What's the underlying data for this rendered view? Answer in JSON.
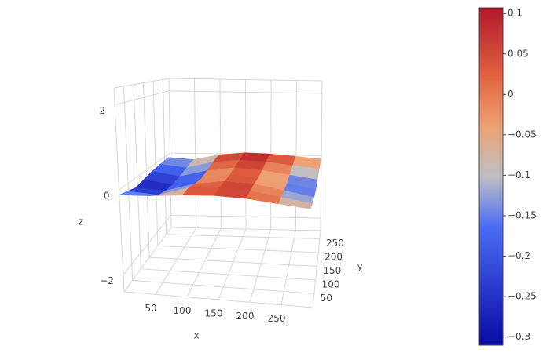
{
  "chart_data": {
    "type": "surface",
    "x_label": "x",
    "y_label": "y",
    "z_label": "z",
    "x": [
      0,
      50,
      100,
      150,
      200,
      250,
      300
    ],
    "y": [
      0,
      45,
      90,
      135,
      180,
      225,
      270
    ],
    "z": [
      [
        -0.12,
        -0.08,
        0.0,
        0.05,
        0.04,
        -0.02,
        -0.08
      ],
      [
        -0.18,
        -0.22,
        0.02,
        0.07,
        0.05,
        -0.05,
        -0.15
      ],
      [
        -0.25,
        -0.28,
        -0.05,
        0.06,
        0.04,
        -0.08,
        -0.2
      ],
      [
        -0.2,
        -0.3,
        -0.1,
        0.04,
        0.0,
        -0.1,
        -0.22
      ],
      [
        -0.15,
        -0.26,
        -0.06,
        0.06,
        0.02,
        -0.08,
        -0.18
      ],
      [
        -0.12,
        -0.2,
        0.0,
        0.08,
        0.06,
        -0.03,
        -0.1
      ],
      [
        -0.1,
        -0.15,
        0.02,
        0.1,
        0.08,
        0.02,
        -0.05
      ]
    ],
    "xlim": [
      0,
      300
    ],
    "ylim": [
      0,
      280
    ],
    "zlim": [
      -2.4,
      2.4
    ],
    "xticks": [
      50,
      100,
      150,
      200,
      250
    ],
    "yticks": [
      50,
      100,
      150,
      200,
      250
    ],
    "zticks": [
      {
        "value": -2,
        "label": "−2"
      },
      0,
      2
    ],
    "grid": true,
    "clim": [
      -0.31,
      0.107
    ],
    "colorscale": [
      [
        0,
        "#0a0aa5"
      ],
      [
        0.35,
        "#4a6cf5"
      ],
      [
        0.5,
        "#bfbfc4"
      ],
      [
        0.65,
        "#eea275"
      ],
      [
        0.8,
        "#e0623f"
      ],
      [
        1,
        "#b2182b"
      ]
    ],
    "colorbar_ticks": [
      0.1,
      0.05,
      0,
      {
        "value": -0.05,
        "label": "−0.05"
      },
      {
        "value": -0.1,
        "label": "−0.1"
      },
      {
        "value": -0.15,
        "label": "−0.15"
      },
      {
        "value": -0.2,
        "label": "−0.2"
      },
      {
        "value": -0.25,
        "label": "−0.25"
      },
      {
        "value": -0.3,
        "label": "−0.3"
      }
    ]
  }
}
